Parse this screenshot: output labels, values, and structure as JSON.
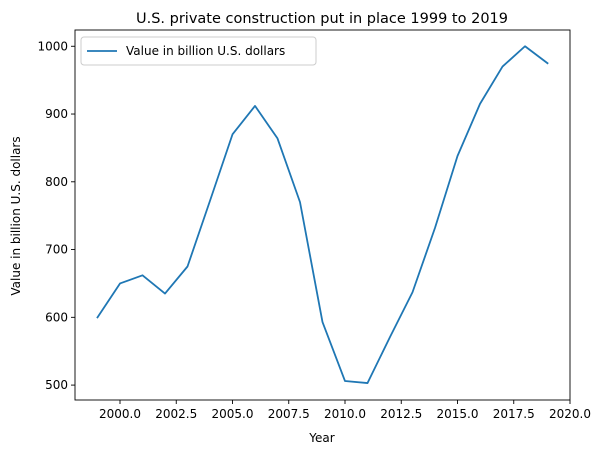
{
  "chart_data": {
    "type": "line",
    "title": "U.S. private construction put in place 1999 to 2019",
    "xlabel": "Year",
    "ylabel": "Value in billion U.S. dollars",
    "xlim": [
      1998.0,
      2020.0
    ],
    "ylim": [
      478,
      1024
    ],
    "xticks": [
      2000.0,
      2002.5,
      2005.0,
      2007.5,
      2010.0,
      2012.5,
      2015.0,
      2017.5,
      2020.0
    ],
    "xtick_labels": [
      "2000.0",
      "2002.5",
      "2005.0",
      "2007.5",
      "2010.0",
      "2012.5",
      "2015.0",
      "2017.5",
      "2020.0"
    ],
    "yticks": [
      500,
      600,
      700,
      800,
      900,
      1000
    ],
    "ytick_labels": [
      "500",
      "600",
      "700",
      "800",
      "900",
      "1000"
    ],
    "grid": false,
    "legend_position": "top-left",
    "series": [
      {
        "name": "Value in billion U.S. dollars",
        "color": "#1f77b4",
        "x": [
          1999,
          2000,
          2001,
          2002,
          2003,
          2004,
          2005,
          2006,
          2007,
          2008,
          2009,
          2010,
          2011,
          2012,
          2013,
          2014,
          2015,
          2016,
          2017,
          2018,
          2019
        ],
        "y": [
          600,
          650,
          662,
          635,
          675,
          772,
          870,
          912,
          864,
          770,
          593,
          506,
          503,
          571,
          637,
          732,
          838,
          915,
          970,
          1000,
          975
        ]
      }
    ]
  }
}
